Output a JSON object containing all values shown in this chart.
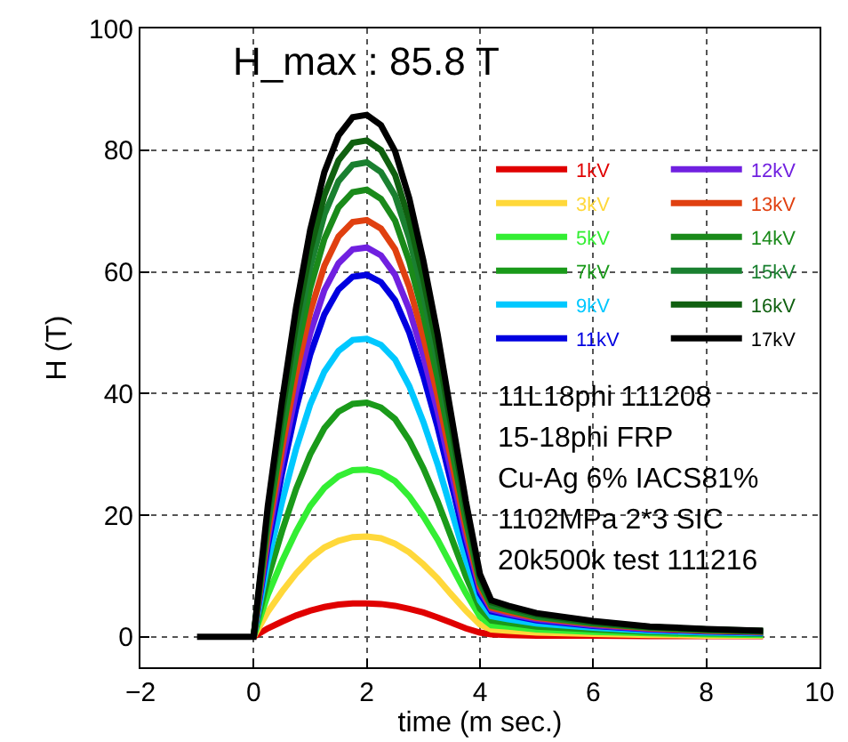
{
  "chart_data": {
    "type": "line",
    "xlabel": "time (m sec.)",
    "ylabel": "H (T)",
    "x": [
      0,
      0.25,
      0.5,
      0.75,
      1,
      1.25,
      1.5,
      1.75,
      2,
      2.25,
      2.5,
      2.75,
      3,
      3.25,
      3.5,
      3.75,
      4,
      4.2,
      4.5,
      5,
      6,
      7,
      8,
      9
    ],
    "series": [
      {
        "name": "1kV",
        "color": "#e00000",
        "values": [
          0,
          1.4,
          2.5,
          3.5,
          4.3,
          4.9,
          5.3,
          5.5,
          5.5,
          5.4,
          5.1,
          4.6,
          4.0,
          3.2,
          2.3,
          1.4,
          0.7,
          0.4,
          0.3,
          0.2,
          0.2,
          0.1,
          0.1,
          0.1
        ]
      },
      {
        "name": "3kV",
        "color": "#ffd83a",
        "values": [
          0,
          4.1,
          7.4,
          10.4,
          12.9,
          14.7,
          15.8,
          16.4,
          16.5,
          16.2,
          15.3,
          13.9,
          11.9,
          9.6,
          6.9,
          4.3,
          2.0,
          1.2,
          1.0,
          0.7,
          0.5,
          0.3,
          0.2,
          0.2
        ]
      },
      {
        "name": "5kV",
        "color": "#33ee33",
        "values": [
          0,
          6.9,
          12.4,
          17.3,
          21.5,
          24.5,
          26.4,
          27.4,
          27.5,
          27.0,
          25.6,
          23.1,
          19.8,
          16.0,
          11.6,
          7.2,
          3.3,
          1.9,
          1.7,
          1.2,
          0.8,
          0.6,
          0.4,
          0.3
        ]
      },
      {
        "name": "7kV",
        "color": "#1a9a1a",
        "values": [
          0,
          9.6,
          17.3,
          24.3,
          30.0,
          34.3,
          37.0,
          38.3,
          38.5,
          37.7,
          35.8,
          32.3,
          27.7,
          22.3,
          16.2,
          10.0,
          4.6,
          2.7,
          2.3,
          1.7,
          1.2,
          0.8,
          0.6,
          0.5
        ]
      },
      {
        "name": "9kV",
        "color": "#00c8ff",
        "values": [
          0,
          12.3,
          22.1,
          30.9,
          38.2,
          43.6,
          47.0,
          48.8,
          49,
          48.0,
          45.6,
          41.2,
          35.3,
          28.4,
          20.6,
          12.7,
          5.9,
          3.4,
          2.9,
          2.2,
          1.5,
          1.0,
          0.7,
          0.6
        ]
      },
      {
        "name": "11kV",
        "color": "#0000e0",
        "values": [
          0,
          14.9,
          26.8,
          37.5,
          46.4,
          53.0,
          57.1,
          59.2,
          59.5,
          58.3,
          55.3,
          50.0,
          42.8,
          34.5,
          25.0,
          15.5,
          7.1,
          4.2,
          3.6,
          2.7,
          1.8,
          1.2,
          0.9,
          0.7
        ]
      },
      {
        "name": "12kV",
        "color": "#7020e0",
        "values": [
          0,
          16,
          28.8,
          40.3,
          49.9,
          57.0,
          61.4,
          63.7,
          64,
          62.7,
          59.5,
          53.8,
          46.1,
          37.1,
          26.9,
          16.6,
          7.7,
          4.5,
          3.8,
          2.9,
          1.9,
          1.3,
          1.0,
          0.8
        ]
      },
      {
        "name": "13kV",
        "color": "#e04010",
        "values": [
          0,
          17.1,
          30.8,
          43.2,
          53.4,
          61.0,
          65.8,
          68.2,
          68.5,
          67.1,
          63.7,
          57.5,
          49.3,
          39.7,
          28.8,
          17.8,
          8.2,
          4.8,
          4.1,
          3.1,
          2.1,
          1.4,
          1.0,
          0.8
        ]
      },
      {
        "name": "14kV",
        "color": "#1a8a1a",
        "values": [
          0,
          18.4,
          33.1,
          46.3,
          57.3,
          65.4,
          70.6,
          73.1,
          73.5,
          72.0,
          68.4,
          61.7,
          52.9,
          42.6,
          30.9,
          19.1,
          8.8,
          5.1,
          4.4,
          3.3,
          2.2,
          1.5,
          1.1,
          0.9
        ]
      },
      {
        "name": "15kV",
        "color": "#1a8030",
        "values": [
          0,
          19.5,
          35.1,
          49.1,
          60.8,
          69.4,
          74.9,
          77.6,
          78,
          76.4,
          72.5,
          65.5,
          56.2,
          45.2,
          32.8,
          20.3,
          9.4,
          5.5,
          4.7,
          3.5,
          2.3,
          1.6,
          1.2,
          0.9
        ]
      },
      {
        "name": "16kV",
        "color": "#106010",
        "values": [
          0,
          20.4,
          36.7,
          51.4,
          63.6,
          72.6,
          78.3,
          81.2,
          81.6,
          80.0,
          75.9,
          68.5,
          58.8,
          47.3,
          34.3,
          21.2,
          9.8,
          5.7,
          4.9,
          3.7,
          2.4,
          1.6,
          1.2,
          1.0
        ]
      },
      {
        "name": "17kV",
        "color": "#000000",
        "x": [
          -1,
          0,
          0.25,
          0.5,
          0.75,
          1,
          1.25,
          1.5,
          1.75,
          2,
          2.25,
          2.5,
          2.75,
          3,
          3.25,
          3.5,
          3.75,
          4,
          4.2,
          4.5,
          5,
          6,
          7,
          8,
          9
        ],
        "values": [
          0,
          0,
          21.5,
          38.6,
          54.1,
          66.9,
          76.4,
          82.4,
          85.4,
          85.8,
          84.1,
          79.8,
          72.1,
          61.8,
          49.8,
          36.0,
          22.3,
          10.3,
          6.0,
          5.1,
          3.9,
          2.6,
          1.7,
          1.3,
          1.0
        ]
      }
    ],
    "xlim": [
      -2,
      10
    ],
    "xticks": [
      -2,
      0,
      2,
      4,
      6,
      8,
      10
    ],
    "ylim": [
      -5,
      100
    ],
    "yticks": [
      0,
      20,
      40,
      60,
      80,
      100
    ],
    "grid": true,
    "legend": "right",
    "marker": "none",
    "line_style": "solid",
    "annotations": [
      {
        "text": "H_max : 85.8 T",
        "x": 2,
        "y": 85.8
      },
      "11L18phi 111208",
      "15-18phi FRP",
      "Cu-Ag 6% IACS81%",
      "1102MPa 2*3 SIC",
      "20k500k test 111216"
    ]
  }
}
